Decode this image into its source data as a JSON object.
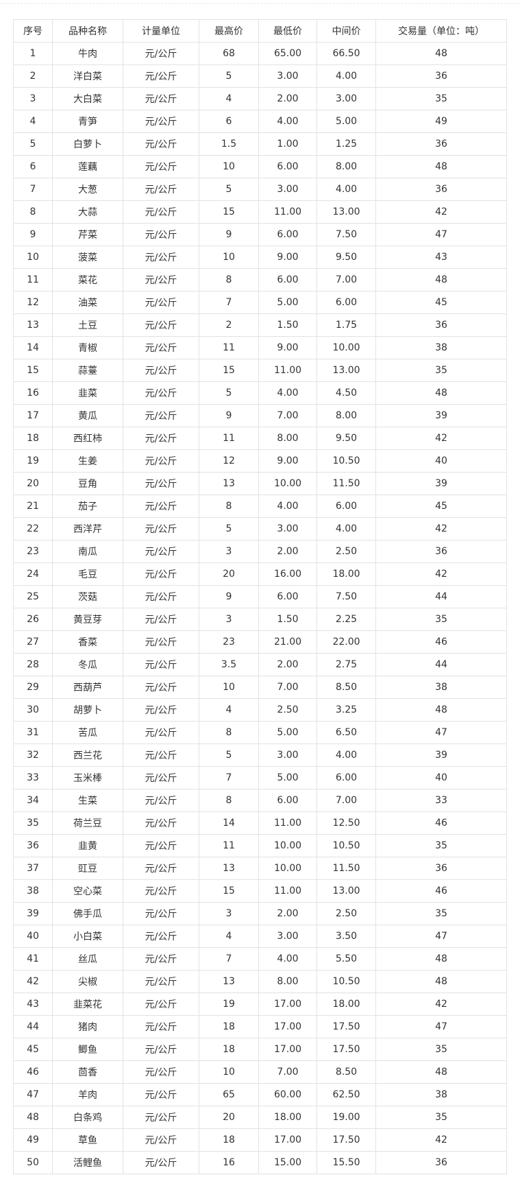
{
  "headers": [
    "序号",
    "品种名称",
    "计量单位",
    "最高价",
    "最低价",
    "中间价",
    "交易量（单位：吨）"
  ],
  "rows": [
    [
      "1",
      "牛肉",
      "元/公斤",
      "68",
      "65.00",
      "66.50",
      "48"
    ],
    [
      "2",
      "洋白菜",
      "元/公斤",
      "5",
      "3.00",
      "4.00",
      "36"
    ],
    [
      "3",
      "大白菜",
      "元/公斤",
      "4",
      "2.00",
      "3.00",
      "35"
    ],
    [
      "4",
      "青笋",
      "元/公斤",
      "6",
      "4.00",
      "5.00",
      "49"
    ],
    [
      "5",
      "白萝卜",
      "元/公斤",
      "1.5",
      "1.00",
      "1.25",
      "36"
    ],
    [
      "6",
      "莲藕",
      "元/公斤",
      "10",
      "6.00",
      "8.00",
      "48"
    ],
    [
      "7",
      "大葱",
      "元/公斤",
      "5",
      "3.00",
      "4.00",
      "36"
    ],
    [
      "8",
      "大蒜",
      "元/公斤",
      "15",
      "11.00",
      "13.00",
      "42"
    ],
    [
      "9",
      "芹菜",
      "元/公斤",
      "9",
      "6.00",
      "7.50",
      "47"
    ],
    [
      "10",
      "菠菜",
      "元/公斤",
      "10",
      "9.00",
      "9.50",
      "43"
    ],
    [
      "11",
      "菜花",
      "元/公斤",
      "8",
      "6.00",
      "7.00",
      "48"
    ],
    [
      "12",
      "油菜",
      "元/公斤",
      "7",
      "5.00",
      "6.00",
      "45"
    ],
    [
      "13",
      "土豆",
      "元/公斤",
      "2",
      "1.50",
      "1.75",
      "36"
    ],
    [
      "14",
      "青椒",
      "元/公斤",
      "11",
      "9.00",
      "10.00",
      "38"
    ],
    [
      "15",
      "蒜薹",
      "元/公斤",
      "15",
      "11.00",
      "13.00",
      "35"
    ],
    [
      "16",
      "韭菜",
      "元/公斤",
      "5",
      "4.00",
      "4.50",
      "48"
    ],
    [
      "17",
      "黄瓜",
      "元/公斤",
      "9",
      "7.00",
      "8.00",
      "39"
    ],
    [
      "18",
      "西红柿",
      "元/公斤",
      "11",
      "8.00",
      "9.50",
      "42"
    ],
    [
      "19",
      "生姜",
      "元/公斤",
      "12",
      "9.00",
      "10.50",
      "40"
    ],
    [
      "20",
      "豆角",
      "元/公斤",
      "13",
      "10.00",
      "11.50",
      "39"
    ],
    [
      "21",
      "茄子",
      "元/公斤",
      "8",
      "4.00",
      "6.00",
      "45"
    ],
    [
      "22",
      "西洋芹",
      "元/公斤",
      "5",
      "3.00",
      "4.00",
      "42"
    ],
    [
      "23",
      "南瓜",
      "元/公斤",
      "3",
      "2.00",
      "2.50",
      "36"
    ],
    [
      "24",
      "毛豆",
      "元/公斤",
      "20",
      "16.00",
      "18.00",
      "42"
    ],
    [
      "25",
      "茨菇",
      "元/公斤",
      "9",
      "6.00",
      "7.50",
      "44"
    ],
    [
      "26",
      "黄豆芽",
      "元/公斤",
      "3",
      "1.50",
      "2.25",
      "35"
    ],
    [
      "27",
      "香菜",
      "元/公斤",
      "23",
      "21.00",
      "22.00",
      "46"
    ],
    [
      "28",
      "冬瓜",
      "元/公斤",
      "3.5",
      "2.00",
      "2.75",
      "44"
    ],
    [
      "29",
      "西葫芦",
      "元/公斤",
      "10",
      "7.00",
      "8.50",
      "38"
    ],
    [
      "30",
      "胡萝卜",
      "元/公斤",
      "4",
      "2.50",
      "3.25",
      "48"
    ],
    [
      "31",
      "苦瓜",
      "元/公斤",
      "8",
      "5.00",
      "6.50",
      "47"
    ],
    [
      "32",
      "西兰花",
      "元/公斤",
      "5",
      "3.00",
      "4.00",
      "39"
    ],
    [
      "33",
      "玉米棒",
      "元/公斤",
      "7",
      "5.00",
      "6.00",
      "40"
    ],
    [
      "34",
      "生菜",
      "元/公斤",
      "8",
      "6.00",
      "7.00",
      "33"
    ],
    [
      "35",
      "荷兰豆",
      "元/公斤",
      "14",
      "11.00",
      "12.50",
      "46"
    ],
    [
      "36",
      "韭黄",
      "元/公斤",
      "11",
      "10.00",
      "10.50",
      "35"
    ],
    [
      "37",
      "豇豆",
      "元/公斤",
      "13",
      "10.00",
      "11.50",
      "36"
    ],
    [
      "38",
      "空心菜",
      "元/公斤",
      "15",
      "11.00",
      "13.00",
      "46"
    ],
    [
      "39",
      "佛手瓜",
      "元/公斤",
      "3",
      "2.00",
      "2.50",
      "35"
    ],
    [
      "40",
      "小白菜",
      "元/公斤",
      "4",
      "3.00",
      "3.50",
      "47"
    ],
    [
      "41",
      "丝瓜",
      "元/公斤",
      "7",
      "4.00",
      "5.50",
      "48"
    ],
    [
      "42",
      "尖椒",
      "元/公斤",
      "13",
      "8.00",
      "10.50",
      "48"
    ],
    [
      "43",
      "韭菜花",
      "元/公斤",
      "19",
      "17.00",
      "18.00",
      "42"
    ],
    [
      "44",
      "猪肉",
      "元/公斤",
      "18",
      "17.00",
      "17.50",
      "47"
    ],
    [
      "45",
      "鲫鱼",
      "元/公斤",
      "18",
      "17.00",
      "17.50",
      "35"
    ],
    [
      "46",
      "茴香",
      "元/公斤",
      "10",
      "7.00",
      "8.50",
      "48"
    ],
    [
      "47",
      "羊肉",
      "元/公斤",
      "65",
      "60.00",
      "62.50",
      "38"
    ],
    [
      "48",
      "白条鸡",
      "元/公斤",
      "20",
      "18.00",
      "19.00",
      "35"
    ],
    [
      "49",
      "草鱼",
      "元/公斤",
      "18",
      "17.00",
      "17.50",
      "42"
    ],
    [
      "50",
      "活鲤鱼",
      "元/公斤",
      "16",
      "15.00",
      "15.50",
      "36"
    ]
  ]
}
